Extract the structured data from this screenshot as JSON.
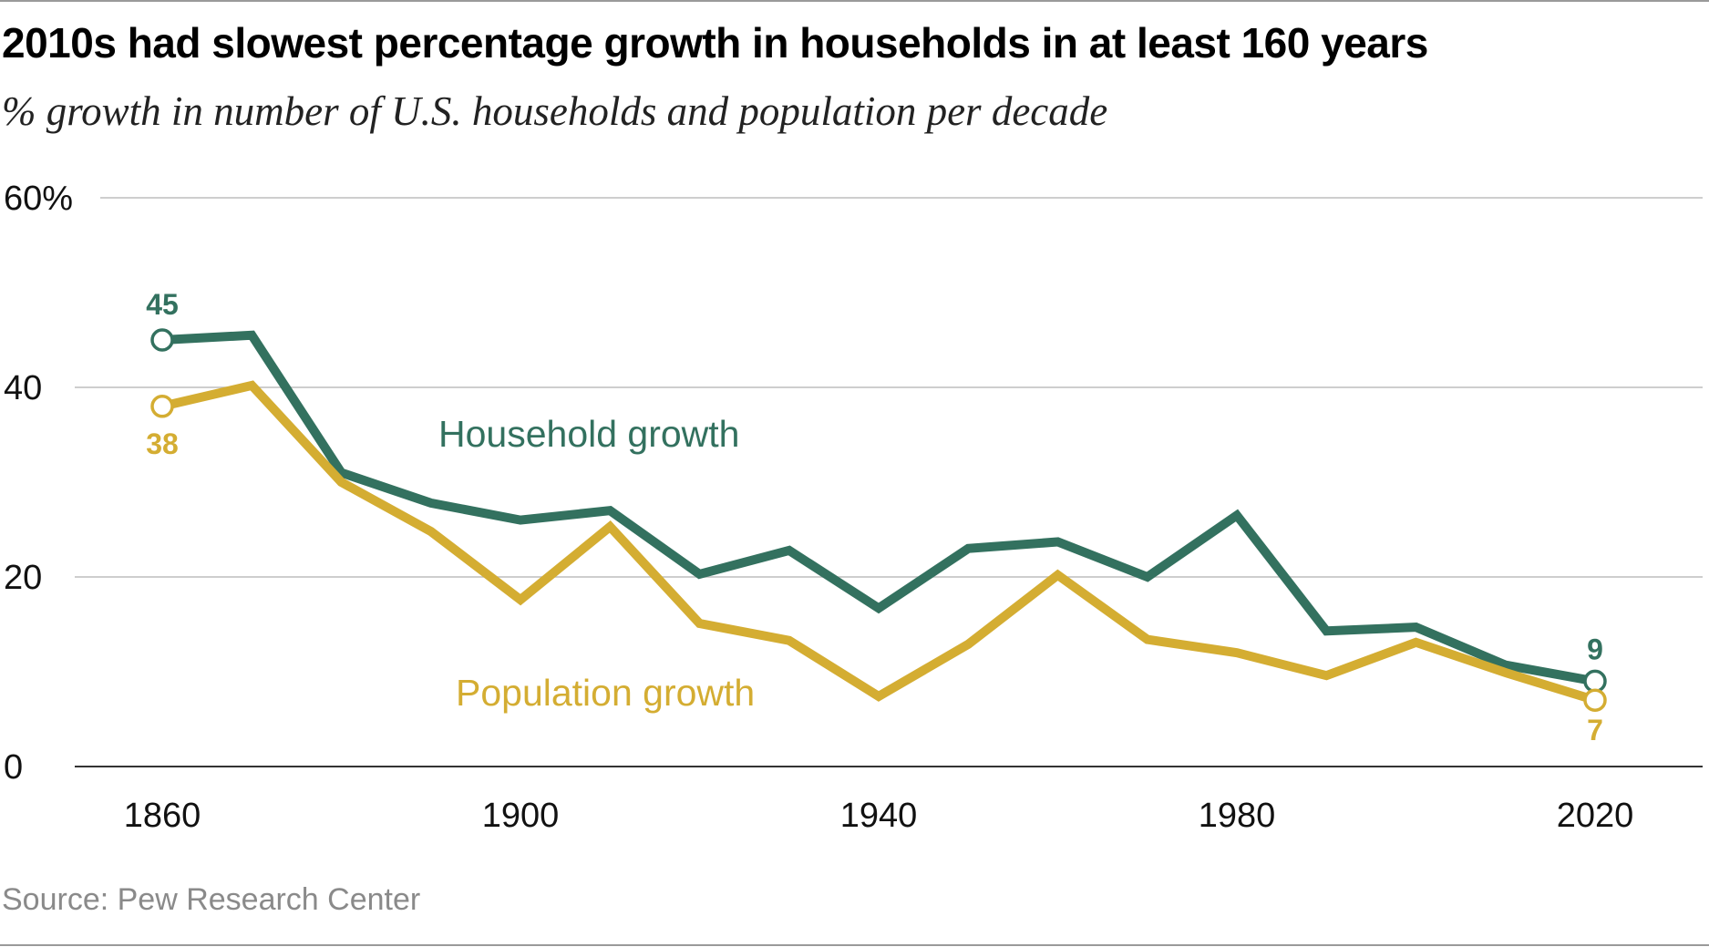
{
  "title": "2010s had slowest percentage growth in households in at least 160 years",
  "subtitle": "% growth in number of U.S. households and population per decade",
  "source": "Source: Pew Research Center",
  "colors": {
    "household": "#33715f",
    "population": "#d4ad32",
    "grid": "#bdbdbd",
    "axis": "#333333"
  },
  "chart_data": {
    "type": "line",
    "title": "2010s had slowest percentage growth in households in at least 160 years",
    "subtitle": "% growth in number of U.S. households and population per decade",
    "x": [
      1860,
      1870,
      1880,
      1890,
      1900,
      1910,
      1920,
      1930,
      1940,
      1950,
      1960,
      1970,
      1980,
      1990,
      2000,
      2010,
      2020
    ],
    "xticks": [
      1860,
      1900,
      1940,
      1980,
      2020
    ],
    "xtick_labels": [
      "1860",
      "1900",
      "1940",
      "1980",
      "2020"
    ],
    "xlim": [
      1860,
      2020
    ],
    "yticks": [
      0,
      20,
      40,
      60
    ],
    "ytick_labels": [
      "0",
      "20",
      "40",
      "60%"
    ],
    "ylim": [
      0,
      60
    ],
    "grid": true,
    "series": [
      {
        "name": "Household growth",
        "values": [
          45,
          45.5,
          31,
          27.8,
          26,
          27,
          20.3,
          22.8,
          16.7,
          23,
          23.7,
          20,
          26.5,
          14.3,
          14.7,
          10.7,
          9
        ],
        "start_label": "45",
        "end_label": "9"
      },
      {
        "name": "Population growth",
        "values": [
          38,
          40.2,
          30,
          24.8,
          17.6,
          25.3,
          15.1,
          13.3,
          7.4,
          12.9,
          20.2,
          13.4,
          12,
          9.6,
          13.1,
          9.9,
          7
        ],
        "start_label": "38",
        "end_label": "7"
      }
    ]
  }
}
